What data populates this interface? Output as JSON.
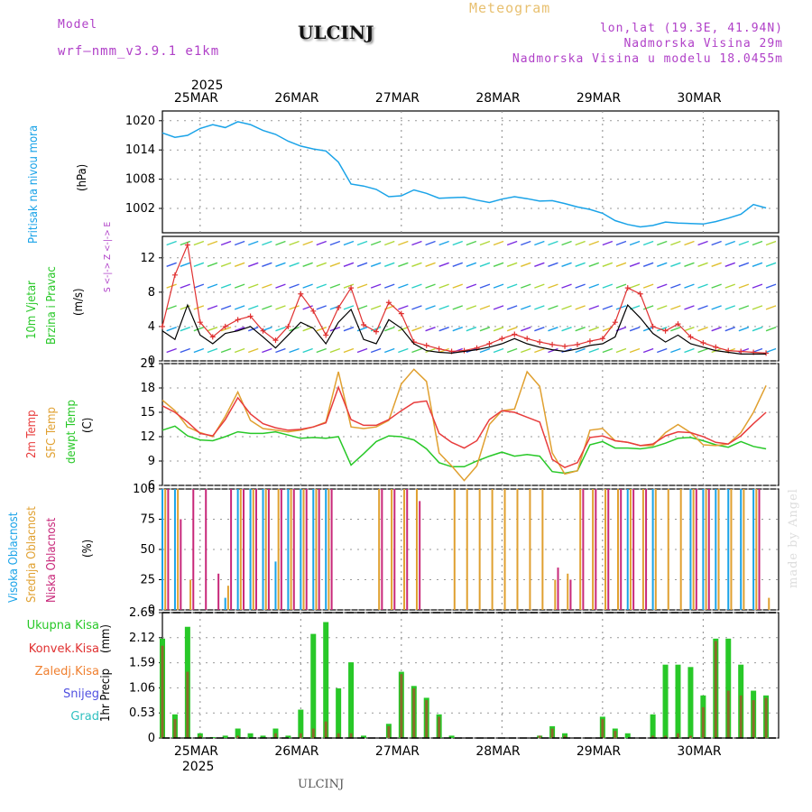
{
  "header": {
    "model_label": "Model",
    "model_value": "wrf—nmm_v3.9.1 e1km",
    "title": "ULCINJ",
    "meteogram": "Meteogram",
    "lonlat": "lon,lat (19.3E, 41.94N)",
    "elevation": "Nadmorska Visina 29m",
    "model_elevation": "Nadmorska Visina u modelu 18.0455m"
  },
  "footer": {
    "station": "ULCINJ",
    "credit": "made by Angel"
  },
  "colors": {
    "pressure": "#1aa3e8",
    "wind_speed": "#000000",
    "gust": "#e03030",
    "t2m": "#e83c3c",
    "tsfc": "#e0a030",
    "dewpt": "#28c828",
    "cloud_high": "#1aa3e8",
    "cloud_mid": "#e0a030",
    "cloud_low": "#c8287a",
    "precip_total": "#28c828",
    "precip_conv": "#e03030",
    "precip_strat": "#f08030",
    "snow": "#5050e0",
    "grad": "#30c0c0"
  },
  "chart_data": [
    {
      "type": "line",
      "panel": "pressure",
      "top_year": "2025",
      "date_labels": [
        "25MAR",
        "26MAR",
        "27MAR",
        "28MAR",
        "29MAR",
        "30MAR"
      ],
      "ylabel_name": "Pritisak na nivou mora",
      "ylabel_unit": "(hPa)",
      "yticks": [
        "1020",
        "1014",
        "1008",
        "1002"
      ],
      "ylim": [
        997,
        1022
      ],
      "x": [
        0,
        3,
        6,
        9,
        12,
        15,
        18,
        21,
        24,
        27,
        30,
        33,
        36,
        39,
        42,
        45,
        48,
        51,
        54,
        57,
        60,
        63,
        66,
        69,
        72,
        75,
        78,
        81,
        84,
        87,
        90,
        93,
        96,
        99,
        102,
        105,
        108,
        111,
        114,
        117,
        120,
        123,
        126,
        129,
        132,
        135,
        138,
        141,
        144
      ],
      "series": [
        {
          "values": [
            1017.5,
            1016.6,
            1017.0,
            1018.4,
            1019.2,
            1018.6,
            1019.8,
            1019.2,
            1018.0,
            1017.2,
            1015.8,
            1014.8,
            1014.2,
            1013.8,
            1011.5,
            1007.0,
            1006.6,
            1005.9,
            1004.4,
            1004.6,
            1005.8,
            1005.1,
            1004.1,
            1004.2,
            1004.3,
            1003.7,
            1003.2,
            1003.9,
            1004.4,
            1004.0,
            1003.5,
            1003.6,
            1003.0,
            1002.3,
            1001.8,
            1001.0,
            999.5,
            998.7,
            998.2,
            998.5,
            999.2,
            999.0,
            998.9,
            998.8,
            999.3,
            1000.0,
            1000.8,
            1002.8,
            1002.1
          ]
        }
      ]
    },
    {
      "type": "line",
      "panel": "wind",
      "ylabel_name1": "10m Vjetar",
      "ylabel_name2": "Brzina i Pravac",
      "ylabel_unit": "(m/s)",
      "compass": "S <-|-> Z <-|-> E",
      "yticks": [
        "12",
        "8",
        "4",
        "0"
      ],
      "ylim": [
        0,
        14.5
      ],
      "x": [
        0,
        3,
        6,
        9,
        12,
        15,
        18,
        21,
        24,
        27,
        30,
        33,
        36,
        39,
        42,
        45,
        48,
        51,
        54,
        57,
        60,
        63,
        66,
        69,
        72,
        75,
        78,
        81,
        84,
        87,
        90,
        93,
        96,
        99,
        102,
        105,
        108,
        111,
        114,
        117,
        120,
        123,
        126,
        129,
        132,
        135,
        138,
        141,
        144
      ],
      "series": [
        {
          "name": "speed",
          "values": [
            3.5,
            2.5,
            6.5,
            3.0,
            2.0,
            3.2,
            3.5,
            4.0,
            2.8,
            1.5,
            3.0,
            4.5,
            3.8,
            2.0,
            4.5,
            6.0,
            2.5,
            2.0,
            4.8,
            3.8,
            2.0,
            1.2,
            1.0,
            0.9,
            1.1,
            1.3,
            1.6,
            2.0,
            2.6,
            2.0,
            1.6,
            1.3,
            1.1,
            1.4,
            1.8,
            2.0,
            2.8,
            6.5,
            5.0,
            3.2,
            2.2,
            3.0,
            2.0,
            1.6,
            1.2,
            1.0,
            0.8,
            0.8,
            0.8
          ]
        },
        {
          "name": "gust",
          "values": [
            4.0,
            10.0,
            13.5,
            4.5,
            2.8,
            4.0,
            4.8,
            5.2,
            3.5,
            2.4,
            4.0,
            7.8,
            5.8,
            3.0,
            6.2,
            8.5,
            4.2,
            3.4,
            6.8,
            5.5,
            2.2,
            1.8,
            1.4,
            1.1,
            1.2,
            1.5,
            2.0,
            2.6,
            3.1,
            2.6,
            2.2,
            1.9,
            1.7,
            1.9,
            2.3,
            2.6,
            4.5,
            8.5,
            7.8,
            4.0,
            3.5,
            4.3,
            2.8,
            2.1,
            1.6,
            1.2,
            1.1,
            1.0,
            0.9
          ]
        }
      ]
    },
    {
      "type": "line",
      "panel": "temperature",
      "ylabel_name1": "2m Temp",
      "ylabel_name2": "SFC Temp",
      "ylabel_name3": "dewpt Temp",
      "ylabel_unit": "(C)",
      "yticks": [
        "21",
        "18",
        "15",
        "12",
        "9",
        "6"
      ],
      "ylim": [
        6,
        21
      ],
      "x": [
        0,
        3,
        6,
        9,
        12,
        15,
        18,
        21,
        24,
        27,
        30,
        33,
        36,
        39,
        42,
        45,
        48,
        51,
        54,
        57,
        60,
        63,
        66,
        69,
        72,
        75,
        78,
        81,
        84,
        87,
        90,
        93,
        96,
        99,
        102,
        105,
        108,
        111,
        114,
        117,
        120,
        123,
        126,
        129,
        132,
        135,
        138,
        141,
        144
      ],
      "series": [
        {
          "name": "2m Temp",
          "values": [
            15.8,
            15.0,
            13.8,
            12.4,
            12.1,
            14.1,
            16.8,
            14.8,
            13.6,
            13.1,
            12.8,
            12.9,
            13.2,
            13.7,
            18.1,
            14.1,
            13.4,
            13.4,
            14.1,
            15.2,
            16.2,
            16.4,
            12.4,
            11.3,
            10.6,
            11.5,
            14.1,
            15.2,
            15.0,
            14.4,
            13.8,
            9.2,
            8.2,
            8.8,
            11.9,
            12.1,
            11.5,
            11.3,
            10.9,
            11.1,
            12.1,
            12.6,
            12.5,
            12.0,
            11.3,
            11.1,
            12.1,
            13.6,
            15.0
          ]
        },
        {
          "name": "SFC Temp",
          "values": [
            16.5,
            15.2,
            13.2,
            12.5,
            12.0,
            14.5,
            17.5,
            14.0,
            13.0,
            12.8,
            12.6,
            12.8,
            13.2,
            13.8,
            20.0,
            13.2,
            13.0,
            13.2,
            14.0,
            18.5,
            20.3,
            18.8,
            10.0,
            8.4,
            6.6,
            8.4,
            13.5,
            15.2,
            15.4,
            20.0,
            18.2,
            10.0,
            7.4,
            7.8,
            12.8,
            13.0,
            11.5,
            11.3,
            10.9,
            10.9,
            12.5,
            13.5,
            12.5,
            11.0,
            10.9,
            11.1,
            12.5,
            15.0,
            18.3
          ]
        },
        {
          "name": "dewpt Temp",
          "values": [
            12.8,
            13.3,
            12.1,
            11.6,
            11.5,
            12.0,
            12.6,
            12.4,
            12.4,
            12.6,
            12.2,
            11.8,
            11.9,
            11.8,
            12.0,
            8.5,
            9.9,
            11.4,
            12.1,
            12.0,
            11.6,
            10.5,
            8.8,
            8.3,
            8.3,
            9.0,
            9.6,
            10.1,
            9.6,
            9.8,
            9.6,
            7.7,
            7.5,
            7.8,
            11.0,
            11.4,
            10.6,
            10.6,
            10.5,
            10.7,
            11.2,
            11.8,
            11.9,
            11.5,
            11.0,
            10.7,
            11.4,
            10.8,
            10.5
          ]
        }
      ]
    },
    {
      "type": "bar",
      "panel": "cloud",
      "ylabel_name1": "Visoka Oblacnost",
      "ylabel_name2": "Srednja Oblacnost",
      "ylabel_name3": "Niska Oblacnost",
      "ylabel_unit": "(%)",
      "yticks": [
        "100",
        "75",
        "50",
        "25",
        "0"
      ],
      "ylim": [
        0,
        100
      ],
      "x": [
        0,
        3,
        6,
        9,
        12,
        15,
        18,
        21,
        24,
        27,
        30,
        33,
        36,
        39,
        42,
        45,
        48,
        51,
        54,
        57,
        60,
        63,
        66,
        69,
        72,
        75,
        78,
        81,
        84,
        87,
        90,
        93,
        96,
        99,
        102,
        105,
        108,
        111,
        114,
        117,
        120,
        123,
        126,
        129,
        132,
        135,
        138,
        141,
        144
      ],
      "series": [
        {
          "name": "Visoka Oblacnost",
          "values": [
            100,
            100,
            0,
            0,
            0,
            10,
            100,
            100,
            100,
            40,
            100,
            100,
            100,
            100,
            0,
            0,
            0,
            0,
            0,
            0,
            0,
            0,
            0,
            0,
            0,
            0,
            0,
            0,
            0,
            0,
            0,
            0,
            0,
            0,
            0,
            0,
            0,
            100,
            0,
            100,
            0,
            0,
            100,
            100,
            100,
            100,
            100,
            100,
            0
          ]
        },
        {
          "name": "Srednja Oblacnost",
          "values": [
            100,
            100,
            25,
            0,
            0,
            20,
            100,
            100,
            100,
            100,
            100,
            100,
            100,
            100,
            0,
            0,
            0,
            100,
            100,
            100,
            100,
            0,
            0,
            100,
            100,
            100,
            100,
            100,
            100,
            100,
            100,
            25,
            30,
            100,
            100,
            100,
            100,
            100,
            100,
            100,
            100,
            100,
            100,
            100,
            100,
            100,
            100,
            100,
            10
          ]
        },
        {
          "name": "Niska Oblacnost",
          "values": [
            100,
            75,
            100,
            100,
            30,
            100,
            100,
            100,
            100,
            100,
            100,
            100,
            100,
            100,
            0,
            0,
            0,
            100,
            100,
            100,
            90,
            0,
            0,
            0,
            0,
            0,
            0,
            0,
            0,
            0,
            0,
            35,
            25,
            100,
            100,
            100,
            100,
            100,
            100,
            0,
            0,
            0,
            100,
            100,
            0,
            0,
            0,
            100,
            0
          ]
        }
      ]
    },
    {
      "type": "bar",
      "panel": "precip",
      "ylabel_name": "1hr Precip",
      "ylabel_unit": "(mm)",
      "legend": [
        "Ukupna Kisa",
        "Konvek.Kisa",
        "Zaledj.Kisa",
        "Snijeg",
        "Grad"
      ],
      "yticks": [
        "2.65",
        "2.12",
        "1.59",
        "1.06",
        "0.53",
        "0"
      ],
      "ylim": [
        0,
        2.65
      ],
      "bottom_year": "2025",
      "x": [
        0,
        3,
        6,
        9,
        12,
        15,
        18,
        21,
        24,
        27,
        30,
        33,
        36,
        39,
        42,
        45,
        48,
        51,
        54,
        57,
        60,
        63,
        66,
        69,
        72,
        75,
        78,
        81,
        84,
        87,
        90,
        93,
        96,
        99,
        102,
        105,
        108,
        111,
        114,
        117,
        120,
        123,
        126,
        129,
        132,
        135,
        138,
        141,
        144
      ],
      "series": [
        {
          "name": "Ukupna Kisa",
          "values": [
            2.1,
            0.5,
            2.35,
            0.1,
            0.02,
            0.05,
            0.2,
            0.1,
            0.05,
            0.2,
            0.05,
            0.6,
            2.2,
            2.45,
            1.05,
            1.6,
            0.05,
            0,
            0.3,
            1.4,
            1.1,
            0.85,
            0.5,
            0.05,
            0,
            0,
            0,
            0,
            0,
            0,
            0.05,
            0.25,
            0.1,
            0,
            0,
            0.45,
            0.2,
            0.1,
            0,
            0.5,
            1.55,
            1.55,
            1.5,
            0.9,
            2.1,
            2.1,
            1.55,
            1.0,
            0.9
          ]
        },
        {
          "name": "Konvek.Kisa",
          "values": [
            1.95,
            0.4,
            1.4,
            0.05,
            0,
            0,
            0.05,
            0,
            0,
            0.1,
            0,
            0.1,
            0.2,
            0.35,
            0.1,
            0.1,
            0,
            0,
            0.25,
            1.35,
            1.05,
            0.8,
            0.45,
            0,
            0,
            0,
            0,
            0,
            0,
            0,
            0.05,
            0.2,
            0.05,
            0,
            0,
            0.4,
            0.15,
            0,
            0,
            0.05,
            0.05,
            0.1,
            0.05,
            0.65,
            2.05,
            1.0,
            0.9,
            0.8,
            0.85
          ]
        }
      ]
    }
  ]
}
